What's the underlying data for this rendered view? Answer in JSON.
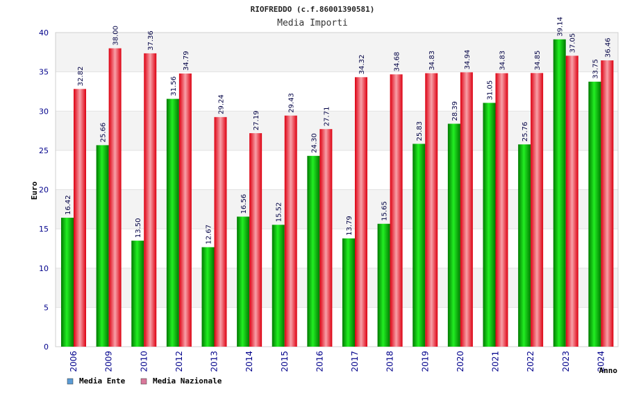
{
  "chart_data": {
    "type": "bar",
    "title": "RIOFREDDO (c.f.86001390581)",
    "subtitle": "Media Importi",
    "ylabel": "Euro",
    "xlabel": "Anno",
    "ylim": [
      0,
      40
    ],
    "yticks": [
      0,
      5,
      10,
      15,
      20,
      25,
      30,
      35,
      40
    ],
    "grid": "horizontal bands",
    "legend_position": "bottom-left",
    "categories": [
      "2006",
      "2009",
      "2010",
      "2012",
      "2013",
      "2014",
      "2015",
      "2016",
      "2017",
      "2018",
      "2019",
      "2020",
      "2021",
      "2022",
      "2023",
      "2024"
    ],
    "series": [
      {
        "name": "Media Ente",
        "color": "#00aa00",
        "legend_color": "#5b9bd5",
        "values": [
          16.42,
          25.66,
          13.5,
          31.56,
          12.67,
          16.56,
          15.52,
          24.3,
          13.79,
          15.65,
          25.83,
          28.39,
          31.05,
          25.76,
          39.14,
          33.75
        ],
        "labels": [
          "16.42",
          "25.66",
          "13.50",
          "31.56",
          "12.67",
          "16.56",
          "15.52",
          "24.30",
          "13.79",
          "15.65",
          "25.83",
          "28.39",
          "31.05",
          "25.76",
          "39.14",
          "33.75"
        ]
      },
      {
        "name": "Media Nazionale",
        "color": "#ee1111",
        "legend_color": "#d9789a",
        "values": [
          32.82,
          38.0,
          37.36,
          34.79,
          29.24,
          27.19,
          29.43,
          27.71,
          34.32,
          34.68,
          34.83,
          34.94,
          34.83,
          34.85,
          37.05,
          36.46
        ],
        "labels": [
          "32.82",
          "38.00",
          "37.36",
          "34.79",
          "29.24",
          "27.19",
          "29.43",
          "27.71",
          "34.32",
          "34.68",
          "34.83",
          "34.94",
          "34.83",
          "34.85",
          "37.05",
          "36.46"
        ]
      }
    ]
  }
}
